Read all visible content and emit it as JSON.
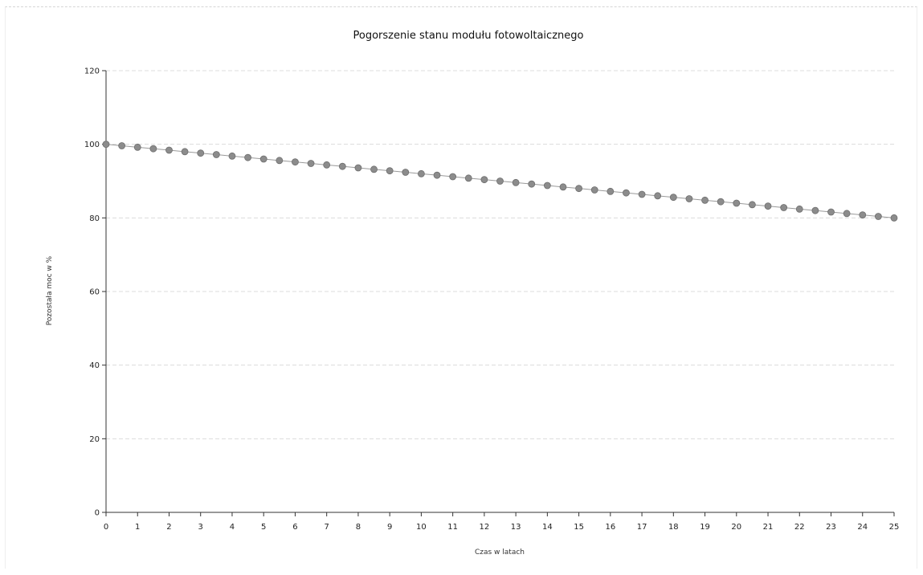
{
  "chart_data": {
    "type": "line",
    "title": "Pogorszenie stanu modułu fotowoltaicznego",
    "xlabel": "Czas w latach",
    "ylabel": "Pozostała moc w %",
    "xlim": [
      0,
      25
    ],
    "ylim": [
      0,
      120
    ],
    "x_ticks": [
      "0",
      "1",
      "2",
      "3",
      "4",
      "5",
      "6",
      "7",
      "8",
      "9",
      "10",
      "11",
      "12",
      "13",
      "14",
      "15",
      "16",
      "17",
      "18",
      "19",
      "20",
      "21",
      "22",
      "23",
      "24",
      "25"
    ],
    "y_ticks": [
      "0",
      "20",
      "40",
      "60",
      "80",
      "100",
      "120"
    ],
    "grid": true,
    "legend": "none",
    "marker": "circle",
    "colors": {
      "marker": "#8c8c8c",
      "line": "#9a9a9a",
      "grid": "#dcdcdc",
      "axis": "#333333"
    },
    "series": [
      {
        "x": [
          0,
          0.5,
          1,
          1.5,
          2,
          2.5,
          3,
          3.5,
          4,
          4.5,
          5,
          5.5,
          6,
          6.5,
          7,
          7.5,
          8,
          8.5,
          9,
          9.5,
          10,
          10.5,
          11,
          11.5,
          12,
          12.5,
          13,
          13.5,
          14,
          14.5,
          15,
          15.5,
          16,
          16.5,
          17,
          17.5,
          18,
          18.5,
          19,
          19.5,
          20,
          20.5,
          21,
          21.5,
          22,
          22.5,
          23,
          23.5,
          24,
          24.5,
          25
        ],
        "values": [
          100,
          99.6,
          99.2,
          98.8,
          98.4,
          98,
          97.6,
          97.2,
          96.8,
          96.4,
          96,
          95.6,
          95.2,
          94.8,
          94.4,
          94,
          93.6,
          93.2,
          92.8,
          92.4,
          92,
          91.6,
          91.2,
          90.8,
          90.4,
          90,
          89.6,
          89.2,
          88.8,
          88.4,
          88,
          87.6,
          87.2,
          86.8,
          86.4,
          86,
          85.6,
          85.2,
          84.8,
          84.4,
          84,
          83.6,
          83.2,
          82.8,
          82.4,
          82,
          81.6,
          81.2,
          80.8,
          80.4,
          80
        ]
      }
    ]
  }
}
